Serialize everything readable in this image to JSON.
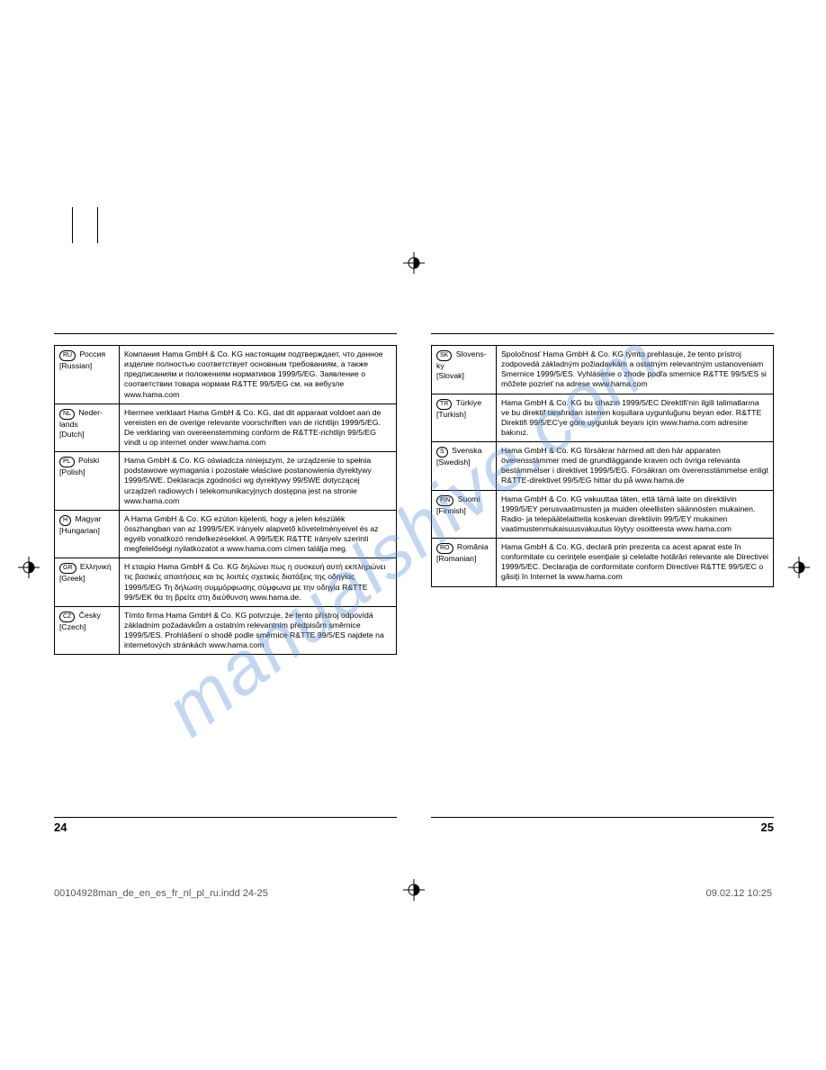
{
  "watermark_text": "manualshive.com",
  "footer": {
    "filename": "00104928man_de_en_es_fr_nl_pl_ru.indd   24-25",
    "timestamp": "09.02.12   10:25"
  },
  "left_page_number": "24",
  "right_page_number": "25",
  "left_rows": [
    {
      "code": "RU",
      "lang": "Россия",
      "en": "[Russian]",
      "text": "Компания Hama GmbH & Co. KG настоящим подтверждает, что данное изделие полностью соответствует основным требованиям, а также предписаниям и положениям нормативов 1999/5/EG. Заявление о соответствии товара нормам R&TTE 99/5/EG см. на вебузле www.hama.com"
    },
    {
      "code": "NL",
      "lang": "Neder­lands",
      "en": "[Dutch]",
      "text": "Hiermee verklaart Hama GmbH & Co. KG, dat dit apparaat voldoet aan de vereisten en de overige relevante voorschriften van de richtlijn 1999/5/EG. De verklaring van overeenstemming conform de R&TTE-richtlijn 99/5/EG vindt u op internet onder www.hama.com"
    },
    {
      "code": "PL",
      "lang": "Polski",
      "en": "[Polish]",
      "text": "Hama GmbH & Co. KG oświadcza niniejszym, że urządzenie to spełnia podstawowe wymagania i pozostałe właściwe postanowienia dyrektywy 1999/5/WE. Deklaracja zgodności wg dyrektywy 99/5WE dotyczącej urządzeń radiowych i telekomunikacyjnych dostępna jest na stronie www.hama.com"
    },
    {
      "code": "H",
      "lang": "Magyar",
      "en": "[Hungarian]",
      "text": "A Hama GmbH & Co. KG ezúton kijelenti, hogy a jelen készülék összhangban van az 1999/5/EK irányelv alapvető követelményeivel és az egyéb vonatkozó rendelkezésekkel. A 99/5/EK R&TTE irányelv szerinti megfelelőségi nyilatkozatot a www.hama.com címen találja meg."
    },
    {
      "code": "GR",
      "lang": "Ελληνική",
      "en": "[Greek]",
      "text": "Η εταιρία Hama GmbH & Co. KG δηλώνει πως η συσκευή αυτή εκπληρώνει τις βασικές απαιτήσεις και τις λοιπές σχετικές διατάξεις της οδηγίας 1999/5/EG Τη δήλωση συμμόρφωσης σύμφωνα με την οδηγία R&TTE 99/5/EK θα τη βρείτε στη διεύθυνση www.hama.de."
    },
    {
      "code": "CZ",
      "lang": "Česky",
      "en": "[Czech]",
      "text": "Tímto firma Hama GmbH & Co. KG potvrzuje, že tento přístroj odpovídá základním požadavkům a ostatním relevantním předpisům směrnice 1999/5/ES. Prohlášení o shodě podle směrnice R&TTE 99/5/ES najdete na internetových stránkách www.hama.com"
    }
  ],
  "right_rows": [
    {
      "code": "SK",
      "lang": "Slovens­ky",
      "en": "[Slovak]",
      "text": "Spoločnosť Hama GmbH & Co. KG týmto prehlasuje, že tento prístroj zodpovedá základným požiadavkám a ostatným relevantným ustanoveniam Smernice 1999/5/ES. Vyhlásenie o zhode podľa smernice R&TTE 99/5/ES si môžete pozrieť na adrese www.hama.com"
    },
    {
      "code": "TR",
      "lang": "Türkiye",
      "en": "[Turkish]",
      "text": "Hama GmbH & Co. KG bu cihazın 1999/5/EC Direktifi'nin ilgili talimatlarına ve bu direktif tarafından istenen koşullara uygunluğunu beyan eder. R&TTE Direktifi 99/5/EC'ye göre uygunluk beyanı için www.hama.com adresine bakınız."
    },
    {
      "code": "S",
      "lang": "Svenska",
      "en": "[Swedish]",
      "text": "Hama GmbH & Co. KG försäkrar härmed att den här apparaten överensstämmer med de grundläggande kraven och övriga relevanta bestämmelser i direktivet 1999/5/EG. Försäkran om överensstämmelse enligt R&TTE-direktivet 99/5/EG hittar du på www.hama.de"
    },
    {
      "code": "FIN",
      "lang": "Suomi",
      "en": "[Finnish]",
      "text": "Hama GmbH & Co. KG vakuuttaa täten, että tämä laite on direktiivin 1999/5/EY perusvaatimusten ja muiden oleellisten säännösten mukainen. Radio- ja telepäätelaitteita koskevan direktiivin 99/5/EY mukainen vaatimustenmukaisuusvakuutus löytyy osoitteesta www.hama.com"
    },
    {
      "code": "RO",
      "lang": "România",
      "en": "[Romanian]",
      "text": "Hama GmbH & Co. KG, declară prin prezenta ca acest aparat este în conformitate cu cerinţele esenţiale şi celelalte hotărâri relevante ale Directivei 1999/5/EC. Declaraţia de conformitate conform Directivei R&TTE 99/5/EC o găsiţi în Internet la www.hama.com"
    }
  ]
}
